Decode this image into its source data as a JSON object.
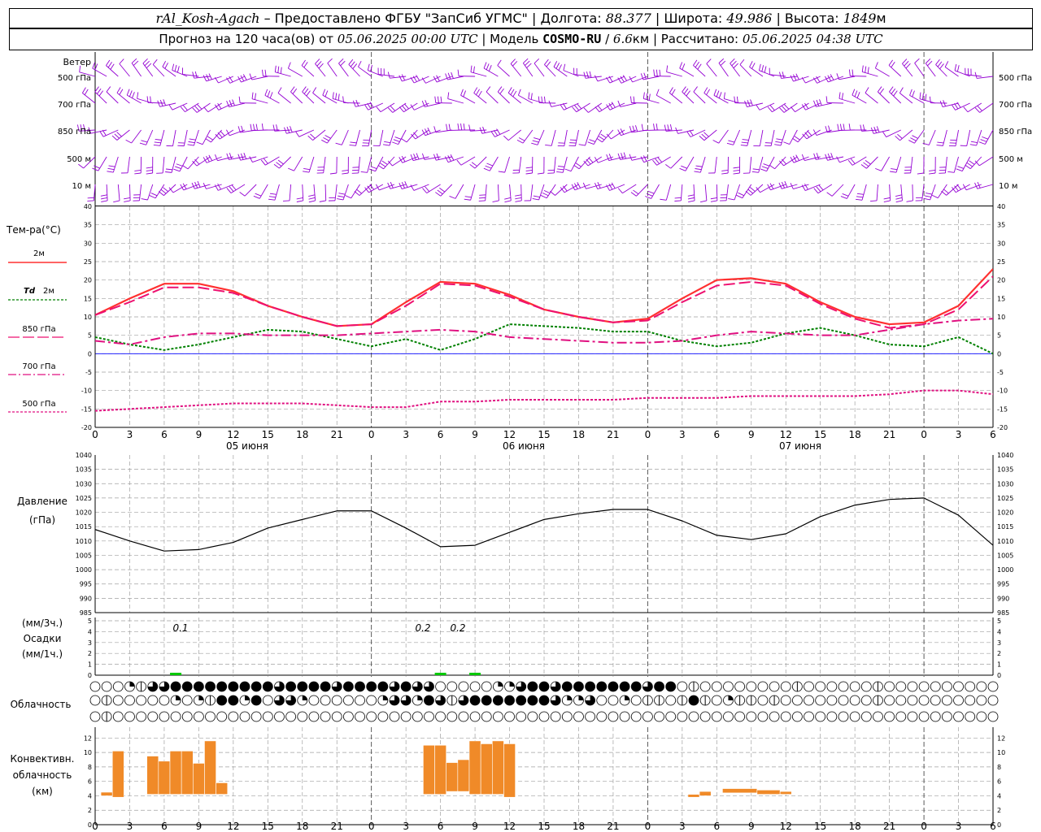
{
  "header": {
    "station": "rAl_Kosh-Agach",
    "sep1": " – ",
    "provider": "Предоставлено ФГБУ \"ЗапСиб УГМС\"",
    "pipe": " | ",
    "lon_label": "Долгота: ",
    "lon_value": "88.377",
    "lat_label": "Широта: ",
    "lat_value": "49.986",
    "alt_label": "Высота: ",
    "alt_value": "1849",
    "alt_unit": "м",
    "forecast_label": "Прогноз на 120 часа(ов) от ",
    "forecast_start": "05.06.2025 00:00 UTC",
    "model_label": "Модель ",
    "model_name": "COSMO-RU",
    "model_sep": " / ",
    "model_res": "6.6",
    "model_res_unit": "км",
    "calc_label": "Рассчитано: ",
    "calc_time": "05.06.2025 04:38 UTC"
  },
  "colors": {
    "wind": "#9400d3",
    "t2m": "#ff3030",
    "td2m": "#008000",
    "t850": "#ee1070",
    "t700": "#e01080",
    "t500": "#e01080",
    "pressure": "#000000",
    "precip": "#00c800",
    "convective": "#f08a28",
    "zero_line": "#0000ff",
    "grid": "#a0a0a0"
  },
  "wind_panel": {
    "title": "Ветер",
    "levels": [
      "500 гПа",
      "700 гПа",
      "850 гПа",
      "500 м",
      "10   м"
    ]
  },
  "temp_panel": {
    "title": "Тем-ра(°C)",
    "legend": [
      {
        "label": "2м",
        "prefix": ""
      },
      {
        "label": "2м",
        "prefix": "Td"
      },
      {
        "label": "850 гПа",
        "prefix": ""
      },
      {
        "label": "700 гПа",
        "prefix": ""
      },
      {
        "label": "500 гПа",
        "prefix": ""
      }
    ],
    "y_ticks": [
      "40",
      "35",
      "30",
      "25",
      "20",
      "15",
      "10",
      "5",
      "0",
      "-5",
      "-10",
      "-15",
      "-20"
    ]
  },
  "time_axis": {
    "hour_labels": [
      "0",
      "3",
      "6",
      "9",
      "12",
      "15",
      "18",
      "21",
      "0",
      "3",
      "6",
      "9",
      "12",
      "15",
      "18",
      "21",
      "0",
      "3",
      "6",
      "9",
      "12",
      "15",
      "18",
      "21",
      "0",
      "3",
      "6"
    ],
    "day_labels": [
      "05 июня",
      "06 июня",
      "07 июня"
    ]
  },
  "pressure_panel": {
    "title": "Давление",
    "unit": "(гПа)",
    "y_ticks": [
      "1040",
      "1035",
      "1030",
      "1025",
      "1020",
      "1015",
      "1010",
      "1005",
      "1000",
      "995",
      "990",
      "985"
    ]
  },
  "precip_panel": {
    "unit3": "(мм/3ч.)",
    "title": "Осадки",
    "unit1": "(мм/1ч.)",
    "y_ticks": [
      "5",
      "4",
      "3",
      "2",
      "1",
      "0"
    ],
    "annotations": [
      "0.1",
      "0.2",
      "0.2"
    ]
  },
  "cloud_panel": {
    "title": "Облачность"
  },
  "conv_panel": {
    "title1": "Конвективн.",
    "title2": "облачность",
    "unit": "(км)",
    "y_ticks": [
      "12",
      "10",
      "8",
      "6",
      "4",
      "2",
      "0"
    ]
  },
  "chart_data": {
    "type": "line",
    "x_hours": [
      0,
      3,
      6,
      9,
      12,
      15,
      18,
      21,
      24,
      27,
      30,
      33,
      36,
      39,
      42,
      45,
      48,
      51,
      54,
      57,
      60,
      63,
      66,
      69,
      72,
      75,
      78
    ],
    "series": [
      {
        "name": "2м",
        "values": [
          10.5,
          15,
          19,
          19,
          17,
          13,
          10,
          7.5,
          8,
          14,
          19.5,
          19,
          16,
          12,
          10,
          8.5,
          9.5,
          15,
          20,
          20.5,
          19,
          14,
          10,
          8,
          8.5,
          13,
          23
        ]
      },
      {
        "name": "Td 2м",
        "values": [
          4.5,
          2.5,
          1,
          2.5,
          4.5,
          6.5,
          6,
          4,
          2,
          4,
          1,
          4,
          8,
          7.5,
          7,
          6,
          6,
          3.5,
          2,
          3,
          5.5,
          7,
          5,
          2.5,
          2,
          4.5,
          0
        ]
      },
      {
        "name": "850 гПа",
        "values": [
          10.5,
          14,
          18,
          18,
          16.5,
          13,
          10,
          7.5,
          8,
          13,
          19,
          18.5,
          15.5,
          12,
          10,
          8.5,
          9,
          14,
          18.5,
          19.5,
          18.5,
          13.5,
          9.5,
          7,
          8,
          12,
          21
        ]
      },
      {
        "name": "700 гПа",
        "values": [
          3.5,
          2.5,
          4.5,
          5.5,
          5.5,
          5,
          5,
          5,
          5.5,
          6,
          6.5,
          6,
          4.5,
          4,
          3.5,
          3,
          3,
          3.5,
          5,
          6,
          5.5,
          5,
          5,
          6.5,
          8,
          9,
          9.5
        ]
      },
      {
        "name": "500 гПа",
        "values": [
          -15.5,
          -15,
          -14.5,
          -14,
          -13.5,
          -13.5,
          -13.5,
          -14,
          -14.5,
          -14.5,
          -13,
          -13,
          -12.5,
          -12.5,
          -12.5,
          -12.5,
          -12,
          -12,
          -12,
          -11.5,
          -11.5,
          -11.5,
          -11.5,
          -11,
          -10,
          -10,
          -11
        ]
      }
    ],
    "pressure": {
      "x_hours": [
        0,
        3,
        6,
        9,
        12,
        15,
        18,
        21,
        24,
        27,
        30,
        33,
        36,
        39,
        42,
        45,
        48,
        51,
        54,
        57,
        60,
        63,
        66,
        69,
        72,
        75,
        78
      ],
      "values": [
        1014,
        1010,
        1006.5,
        1007,
        1009.5,
        1014.5,
        1017.5,
        1020.5,
        1020.5,
        1014.5,
        1008,
        1008.5,
        1013,
        1017.5,
        1019.5,
        1021,
        1021,
        1017,
        1012,
        1010.5,
        1012.5,
        1018.5,
        1022.5,
        1024.5,
        1025,
        1019,
        1008.5
      ]
    },
    "precip": {
      "hour_values": [
        {
          "hour": 7,
          "value": 0.1
        },
        {
          "hour": 30,
          "value": 0.2
        },
        {
          "hour": 33,
          "value": 0.2
        }
      ]
    },
    "convective": {
      "segments": [
        {
          "from": 0.5,
          "to": 1.5,
          "base": 4,
          "top": 4.5
        },
        {
          "from": 1.5,
          "to": 2.5,
          "base": 3.8,
          "top": 10.2
        },
        {
          "from": 4.5,
          "to": 5.5,
          "base": 4.2,
          "top": 9.5
        },
        {
          "from": 5.5,
          "to": 6.5,
          "base": 4.2,
          "top": 8.8
        },
        {
          "from": 6.5,
          "to": 7.5,
          "base": 4.2,
          "top": 10.2
        },
        {
          "from": 7.5,
          "to": 8.5,
          "base": 4.2,
          "top": 10.2
        },
        {
          "from": 8.5,
          "to": 9.5,
          "base": 4.2,
          "top": 8.5
        },
        {
          "from": 9.5,
          "to": 10.5,
          "base": 4.2,
          "top": 11.6
        },
        {
          "from": 10.5,
          "to": 11.5,
          "base": 4.2,
          "top": 5.8
        },
        {
          "from": 28.5,
          "to": 29.5,
          "base": 4.2,
          "top": 11
        },
        {
          "from": 29.5,
          "to": 30.5,
          "base": 4.2,
          "top": 11
        },
        {
          "from": 30.5,
          "to": 31.5,
          "base": 4.6,
          "top": 8.6
        },
        {
          "from": 31.5,
          "to": 32.5,
          "base": 4.6,
          "top": 9
        },
        {
          "from": 32.5,
          "to": 33.5,
          "base": 4.2,
          "top": 11.6
        },
        {
          "from": 33.5,
          "to": 34.5,
          "base": 4.2,
          "top": 11.2
        },
        {
          "from": 34.5,
          "to": 35.5,
          "base": 4.2,
          "top": 11.6
        },
        {
          "from": 35.5,
          "to": 36.5,
          "base": 3.8,
          "top": 11.2
        },
        {
          "from": 51.5,
          "to": 52.5,
          "base": 3.8,
          "top": 4.2
        },
        {
          "from": 52.5,
          "to": 53.5,
          "base": 4,
          "top": 4.6
        },
        {
          "from": 54.5,
          "to": 57.5,
          "base": 4.4,
          "top": 5
        },
        {
          "from": 57.5,
          "to": 59.5,
          "base": 4.2,
          "top": 4.8
        },
        {
          "from": 59.5,
          "to": 60.5,
          "base": 4.2,
          "top": 4.6
        }
      ]
    },
    "cloud_rows": [
      "000213344444444434444344443433000002234434444444344010000000010000001000000000000200002021134444444",
      "0100000202144240332000000233243134444444322300201101410211010000000010000000000004000000000000000143",
      "0100000000000000000000000000000000000000000000000000000000000000000000000000000000000000000000000000"
    ],
    "xlabel": "",
    "ylabel": "Тем-ра(°C)",
    "ylim": [
      -20,
      40
    ]
  }
}
